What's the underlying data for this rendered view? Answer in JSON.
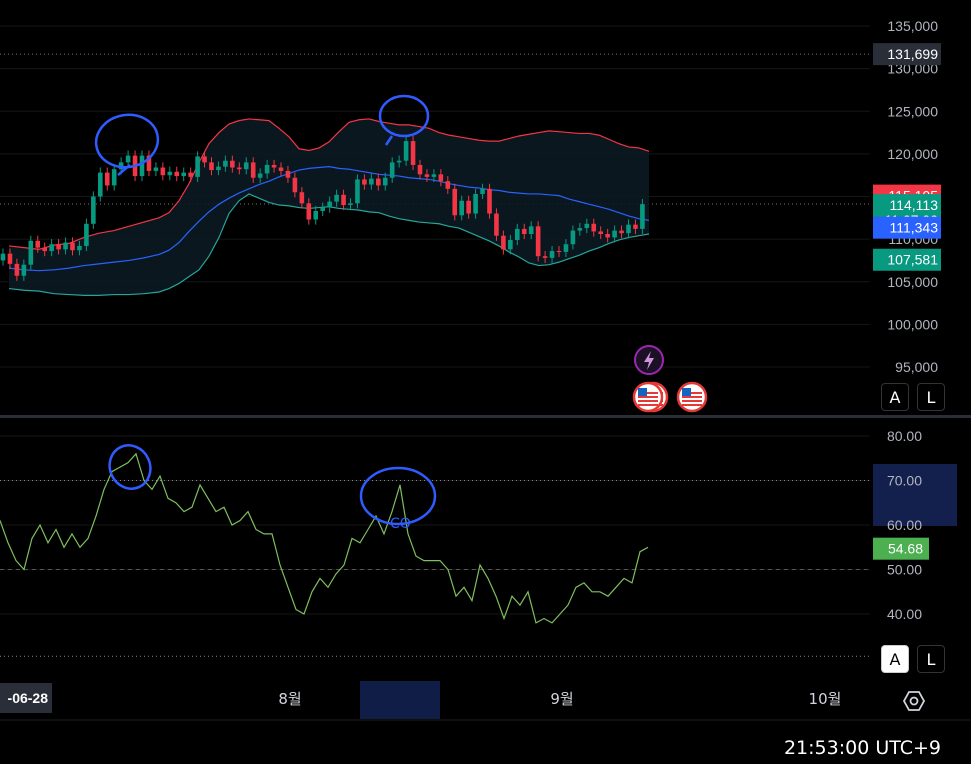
{
  "chart_data": {
    "type": "candlestick",
    "price_axis": {
      "ticks": [
        "135,000",
        "130,000",
        "125,000",
        "120,000",
        "115,000",
        "110,000",
        "105,000",
        "100,000",
        "95,000"
      ],
      "tick_values": [
        135000,
        130000,
        125000,
        120000,
        115000,
        110000,
        105000,
        100000,
        95000
      ],
      "ylim": [
        92500,
        138000
      ]
    },
    "price_labels": [
      {
        "text": "131,699",
        "value": 131699,
        "color": "#2a2e39"
      },
      {
        "text": "115,105",
        "value": 115105,
        "color": "#f23645"
      },
      {
        "text": "114,113",
        "sub": "11:07:00",
        "value": 114113,
        "color": "#089981"
      },
      {
        "text": "111,343",
        "value": 111343,
        "color": "#2962ff"
      },
      {
        "text": "107,581",
        "value": 107581,
        "color": "#089981"
      }
    ],
    "candles": [
      {
        "o": 107500,
        "c": 108300
      },
      {
        "o": 108300,
        "c": 107100
      },
      {
        "o": 107100,
        "c": 105700
      },
      {
        "o": 105700,
        "c": 107000
      },
      {
        "o": 107000,
        "c": 109800
      },
      {
        "o": 109800,
        "c": 109000
      },
      {
        "o": 109000,
        "c": 108600
      },
      {
        "o": 108600,
        "c": 109400
      },
      {
        "o": 109400,
        "c": 108800
      },
      {
        "o": 108800,
        "c": 109600
      },
      {
        "o": 109600,
        "c": 108700
      },
      {
        "o": 108700,
        "c": 109200
      },
      {
        "o": 109200,
        "c": 111800
      },
      {
        "o": 111800,
        "c": 115000
      },
      {
        "o": 115000,
        "c": 117800
      },
      {
        "o": 117800,
        "c": 116300
      },
      {
        "o": 116300,
        "c": 118200
      },
      {
        "o": 118200,
        "c": 119000
      },
      {
        "o": 119000,
        "c": 119800
      },
      {
        "o": 119800,
        "c": 117400
      },
      {
        "o": 117400,
        "c": 119800
      },
      {
        "o": 119800,
        "c": 118000
      },
      {
        "o": 118000,
        "c": 118400
      },
      {
        "o": 118400,
        "c": 117500
      },
      {
        "o": 117500,
        "c": 117900
      },
      {
        "o": 117900,
        "c": 117400
      },
      {
        "o": 117400,
        "c": 117800
      },
      {
        "o": 117800,
        "c": 117300
      },
      {
        "o": 117300,
        "c": 119700
      },
      {
        "o": 119700,
        "c": 119000
      },
      {
        "o": 119000,
        "c": 118100
      },
      {
        "o": 118100,
        "c": 118500
      },
      {
        "o": 118500,
        "c": 119200
      },
      {
        "o": 119200,
        "c": 118400
      },
      {
        "o": 118400,
        "c": 118200
      },
      {
        "o": 118200,
        "c": 119000
      },
      {
        "o": 119000,
        "c": 117200
      },
      {
        "o": 117200,
        "c": 117700
      },
      {
        "o": 117700,
        "c": 118700
      },
      {
        "o": 118700,
        "c": 118400
      },
      {
        "o": 118400,
        "c": 118000
      },
      {
        "o": 118000,
        "c": 117200
      },
      {
        "o": 117200,
        "c": 115500
      },
      {
        "o": 115500,
        "c": 114200
      },
      {
        "o": 114200,
        "c": 112300
      },
      {
        "o": 112300,
        "c": 113300
      },
      {
        "o": 113300,
        "c": 113700
      },
      {
        "o": 113700,
        "c": 114400
      },
      {
        "o": 114400,
        "c": 115200
      },
      {
        "o": 115200,
        "c": 114000
      },
      {
        "o": 114000,
        "c": 114200
      },
      {
        "o": 114200,
        "c": 117000
      },
      {
        "o": 117000,
        "c": 116400
      },
      {
        "o": 116400,
        "c": 117100
      },
      {
        "o": 117100,
        "c": 116300
      },
      {
        "o": 116300,
        "c": 117200
      },
      {
        "o": 117200,
        "c": 119000
      },
      {
        "o": 119000,
        "c": 119200
      },
      {
        "o": 119200,
        "c": 121500
      },
      {
        "o": 121500,
        "c": 118700
      },
      {
        "o": 118700,
        "c": 117600
      },
      {
        "o": 117600,
        "c": 117300
      },
      {
        "o": 117300,
        "c": 117600
      },
      {
        "o": 117600,
        "c": 116800
      },
      {
        "o": 116800,
        "c": 115900
      },
      {
        "o": 115900,
        "c": 112800
      },
      {
        "o": 112800,
        "c": 114500
      },
      {
        "o": 114500,
        "c": 113000
      },
      {
        "o": 113000,
        "c": 115300
      },
      {
        "o": 115300,
        "c": 115900
      },
      {
        "o": 115900,
        "c": 113000
      },
      {
        "o": 113000,
        "c": 110400
      },
      {
        "o": 110400,
        "c": 108800
      },
      {
        "o": 108800,
        "c": 109900
      },
      {
        "o": 109900,
        "c": 111200
      },
      {
        "o": 111200,
        "c": 110600
      },
      {
        "o": 110600,
        "c": 111500
      },
      {
        "o": 111500,
        "c": 108000
      },
      {
        "o": 108000,
        "c": 107800
      },
      {
        "o": 107800,
        "c": 108600
      },
      {
        "o": 108600,
        "c": 108500
      },
      {
        "o": 108500,
        "c": 109400
      },
      {
        "o": 109400,
        "c": 111000
      },
      {
        "o": 111000,
        "c": 111300
      },
      {
        "o": 111300,
        "c": 111800
      },
      {
        "o": 111800,
        "c": 110900
      },
      {
        "o": 110900,
        "c": 110600
      },
      {
        "o": 110600,
        "c": 110200
      },
      {
        "o": 110200,
        "c": 111000
      },
      {
        "o": 111000,
        "c": 110700
      },
      {
        "o": 110700,
        "c": 111700
      },
      {
        "o": 111700,
        "c": 111200
      },
      {
        "o": 111200,
        "c": 114100
      }
    ],
    "bollinger": {
      "upper": [
        109200,
        109000,
        108800,
        109300,
        109500,
        110200,
        110700,
        111000,
        111500,
        112000,
        112500,
        113100,
        114500,
        116500,
        119000,
        121200,
        122500,
        123500,
        123900,
        124100,
        124000,
        123900,
        123000,
        122000,
        120600,
        120400,
        120700,
        121400,
        122600,
        123700,
        124000,
        124100,
        123800,
        123600,
        123400,
        123400,
        123200,
        123000,
        122500,
        122200,
        122000,
        121800,
        121600,
        121500,
        121500,
        121800,
        122100,
        122300,
        122500,
        122700,
        122600,
        122500,
        122400,
        122400,
        122200,
        121700,
        121200,
        120800,
        120700,
        120300
      ],
      "basis": [
        106600,
        106400,
        106300,
        106400,
        106600,
        106900,
        107100,
        107300,
        107500,
        107800,
        108200,
        108700,
        109600,
        110900,
        112100,
        113200,
        114100,
        114800,
        115400,
        115900,
        116400,
        116800,
        117300,
        117700,
        118100,
        118300,
        118400,
        118500,
        118300,
        118200,
        118000,
        117800,
        117600,
        117500,
        117400,
        117200,
        117100,
        117000,
        116800,
        116500,
        116300,
        116100,
        116000,
        115800,
        115700,
        115500,
        115400,
        115300,
        115300,
        115200,
        115100,
        114700,
        114400,
        114100,
        113800,
        113500,
        113100,
        112700,
        112400,
        112200
      ],
      "lower": [
        104200,
        104000,
        103900,
        103600,
        103500,
        103400,
        103400,
        103500,
        103500,
        103600,
        103800,
        104200,
        104800,
        105600,
        106400,
        108000,
        110200,
        113000,
        114500,
        115300,
        114800,
        114300,
        114000,
        113900,
        113700,
        113600,
        113700,
        113800,
        113600,
        113500,
        113400,
        113200,
        113100,
        112700,
        112400,
        112200,
        112000,
        111900,
        111800,
        111500,
        111300,
        110800,
        110300,
        109800,
        109200,
        108500,
        107900,
        107200,
        106900,
        107000,
        107300,
        107700,
        108100,
        108600,
        109000,
        109500,
        109900,
        110200,
        110400,
        110600
      ],
      "points_x": [
        -40,
        -25,
        -10,
        5,
        20,
        35,
        50,
        65,
        80,
        95,
        110,
        120,
        130,
        140,
        150,
        160,
        170,
        180,
        190,
        200,
        210,
        220,
        230,
        240,
        250,
        260,
        270,
        280,
        290,
        300,
        310,
        320,
        330,
        340,
        350,
        360,
        370,
        380,
        390,
        400,
        410,
        420,
        430,
        440,
        450,
        460,
        470,
        480,
        490,
        500,
        510,
        520,
        530,
        540,
        550,
        560,
        570,
        580,
        590,
        600
      ]
    },
    "rsi": {
      "ticks": [
        "80.00",
        "70.00",
        "60.00",
        "50.00",
        "40.00"
      ],
      "tick_values": [
        80,
        70,
        60,
        50,
        40
      ],
      "ylim": [
        35,
        84
      ],
      "current_label": "54.68",
      "current": 54.68,
      "values": [
        61,
        56,
        52,
        50,
        57,
        60,
        56,
        59,
        55,
        58,
        55,
        57,
        62,
        68,
        72,
        73,
        74,
        76,
        70,
        68,
        71,
        66,
        65,
        63,
        64,
        69,
        66,
        63,
        64,
        60,
        61,
        63,
        59,
        58,
        58,
        51,
        46,
        41,
        40,
        45,
        48,
        46,
        49,
        51,
        57,
        56,
        59,
        62,
        58,
        63,
        69,
        58,
        53,
        52,
        52,
        52,
        50,
        44,
        46,
        43,
        51,
        48,
        44,
        39,
        44,
        42,
        45,
        38,
        39,
        38,
        40,
        42,
        46,
        47,
        45,
        45,
        44,
        46,
        48,
        47,
        54,
        55
      ]
    },
    "time_axis": {
      "labels": [
        "8월",
        "9월",
        "10월"
      ],
      "first_date": "-06-28"
    },
    "annotations": [
      {
        "text": "CO"
      }
    ]
  },
  "ui": {
    "price_auto_btn": "A",
    "price_log_btn": "L",
    "rsi_auto_btn": "A",
    "rsi_log_btn": "L",
    "time": "21:53:00 UTC+9",
    "date_chip": "-06-28"
  },
  "colors": {
    "up": "#089981",
    "down": "#f23645",
    "basis": "#2962ff",
    "upper": "#f23645",
    "lower": "#26a69a",
    "rsi": "#7fbf5f",
    "annotation": "#2f5bff"
  }
}
